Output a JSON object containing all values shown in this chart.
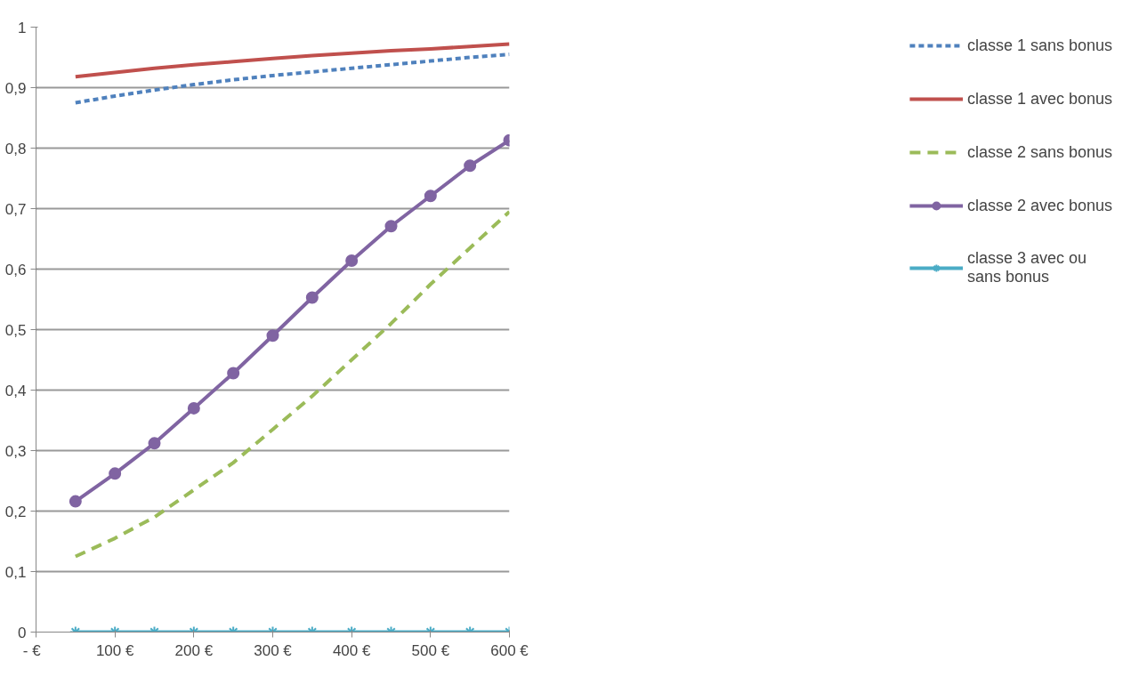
{
  "chart_data": {
    "type": "line",
    "x": [
      50,
      100,
      150,
      200,
      250,
      300,
      350,
      400,
      450,
      500,
      550,
      600
    ],
    "xlim": [
      0,
      600
    ],
    "xticks": [
      {
        "value": 0,
        "label": "-   €"
      },
      {
        "value": 100,
        "label": "100 €"
      },
      {
        "value": 200,
        "label": "200 €"
      },
      {
        "value": 300,
        "label": "300 €"
      },
      {
        "value": 400,
        "label": "400 €"
      },
      {
        "value": 500,
        "label": "500 €"
      },
      {
        "value": 600,
        "label": "600 €"
      }
    ],
    "ylim": [
      0,
      1
    ],
    "yticks": [
      {
        "value": 0,
        "label": "0"
      },
      {
        "value": 0.1,
        "label": "0,1"
      },
      {
        "value": 0.2,
        "label": "0,2"
      },
      {
        "value": 0.3,
        "label": "0,3"
      },
      {
        "value": 0.4,
        "label": "0,4"
      },
      {
        "value": 0.5,
        "label": "0,5"
      },
      {
        "value": 0.6,
        "label": "0,6"
      },
      {
        "value": 0.7,
        "label": "0,7"
      },
      {
        "value": 0.8,
        "label": "0,8"
      },
      {
        "value": 0.9,
        "label": "0,9"
      },
      {
        "value": 1,
        "label": "1"
      }
    ],
    "grid": "y",
    "legend": "right",
    "series": [
      {
        "name": "classe 1 sans bonus",
        "color": "#4f81bd",
        "line_style": "dotted",
        "marker": "none",
        "values": [
          0.875,
          0.886,
          0.896,
          0.905,
          0.913,
          0.92,
          0.926,
          0.932,
          0.938,
          0.944,
          0.95,
          0.955
        ]
      },
      {
        "name": "classe 1 avec bonus",
        "color": "#c0504d",
        "line_style": "solid",
        "marker": "none",
        "values": [
          0.918,
          0.925,
          0.932,
          0.938,
          0.943,
          0.948,
          0.953,
          0.957,
          0.961,
          0.964,
          0.968,
          0.972
        ]
      },
      {
        "name": "classe 2 sans bonus",
        "color": "#9bbb59",
        "line_style": "dashed",
        "marker": "none",
        "values": [
          0.125,
          0.155,
          0.19,
          0.235,
          0.28,
          0.335,
          0.39,
          0.45,
          0.51,
          0.575,
          0.635,
          0.695
        ]
      },
      {
        "name": "classe 2 avec bonus",
        "color": "#8064a2",
        "line_style": "solid",
        "marker": "circle",
        "values": [
          0.216,
          0.262,
          0.312,
          0.37,
          0.428,
          0.49,
          0.553,
          0.614,
          0.671,
          0.721,
          0.771,
          0.813
        ]
      },
      {
        "name": "classe 3 avec ou sans bonus",
        "color": "#4bacc6",
        "line_style": "solid",
        "marker": "cross",
        "values": [
          0,
          0,
          0,
          0,
          0,
          0,
          0,
          0,
          0,
          0,
          0,
          0
        ]
      }
    ]
  }
}
